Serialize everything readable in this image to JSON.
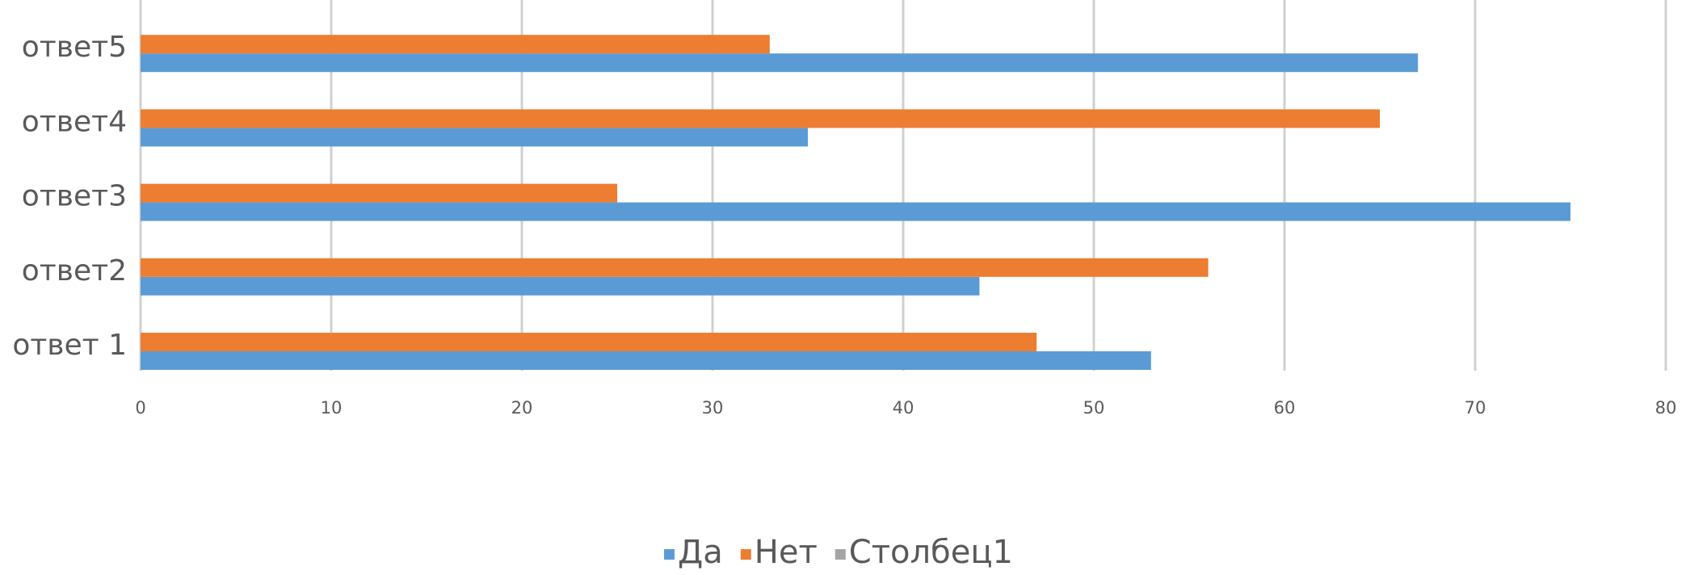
{
  "chart_data": {
    "type": "hbar",
    "categories": [
      "ответ 1",
      "ответ2",
      "ответ3",
      "ответ4",
      "ответ5"
    ],
    "series": [
      {
        "name": "Да",
        "color": "#5b9bd5",
        "values": [
          53,
          44,
          75,
          35,
          67
        ]
      },
      {
        "name": "Нет",
        "color": "#ed7d31",
        "values": [
          47,
          56,
          25,
          65,
          33
        ]
      },
      {
        "name": "Столбец1",
        "color": "#a5a5a5",
        "values": [
          null,
          null,
          null,
          null,
          null
        ]
      }
    ],
    "xlim": [
      0,
      80
    ],
    "xticks": [
      0,
      10,
      20,
      30,
      40,
      50,
      60,
      70,
      80
    ],
    "grid": true,
    "legend": "bottom"
  }
}
